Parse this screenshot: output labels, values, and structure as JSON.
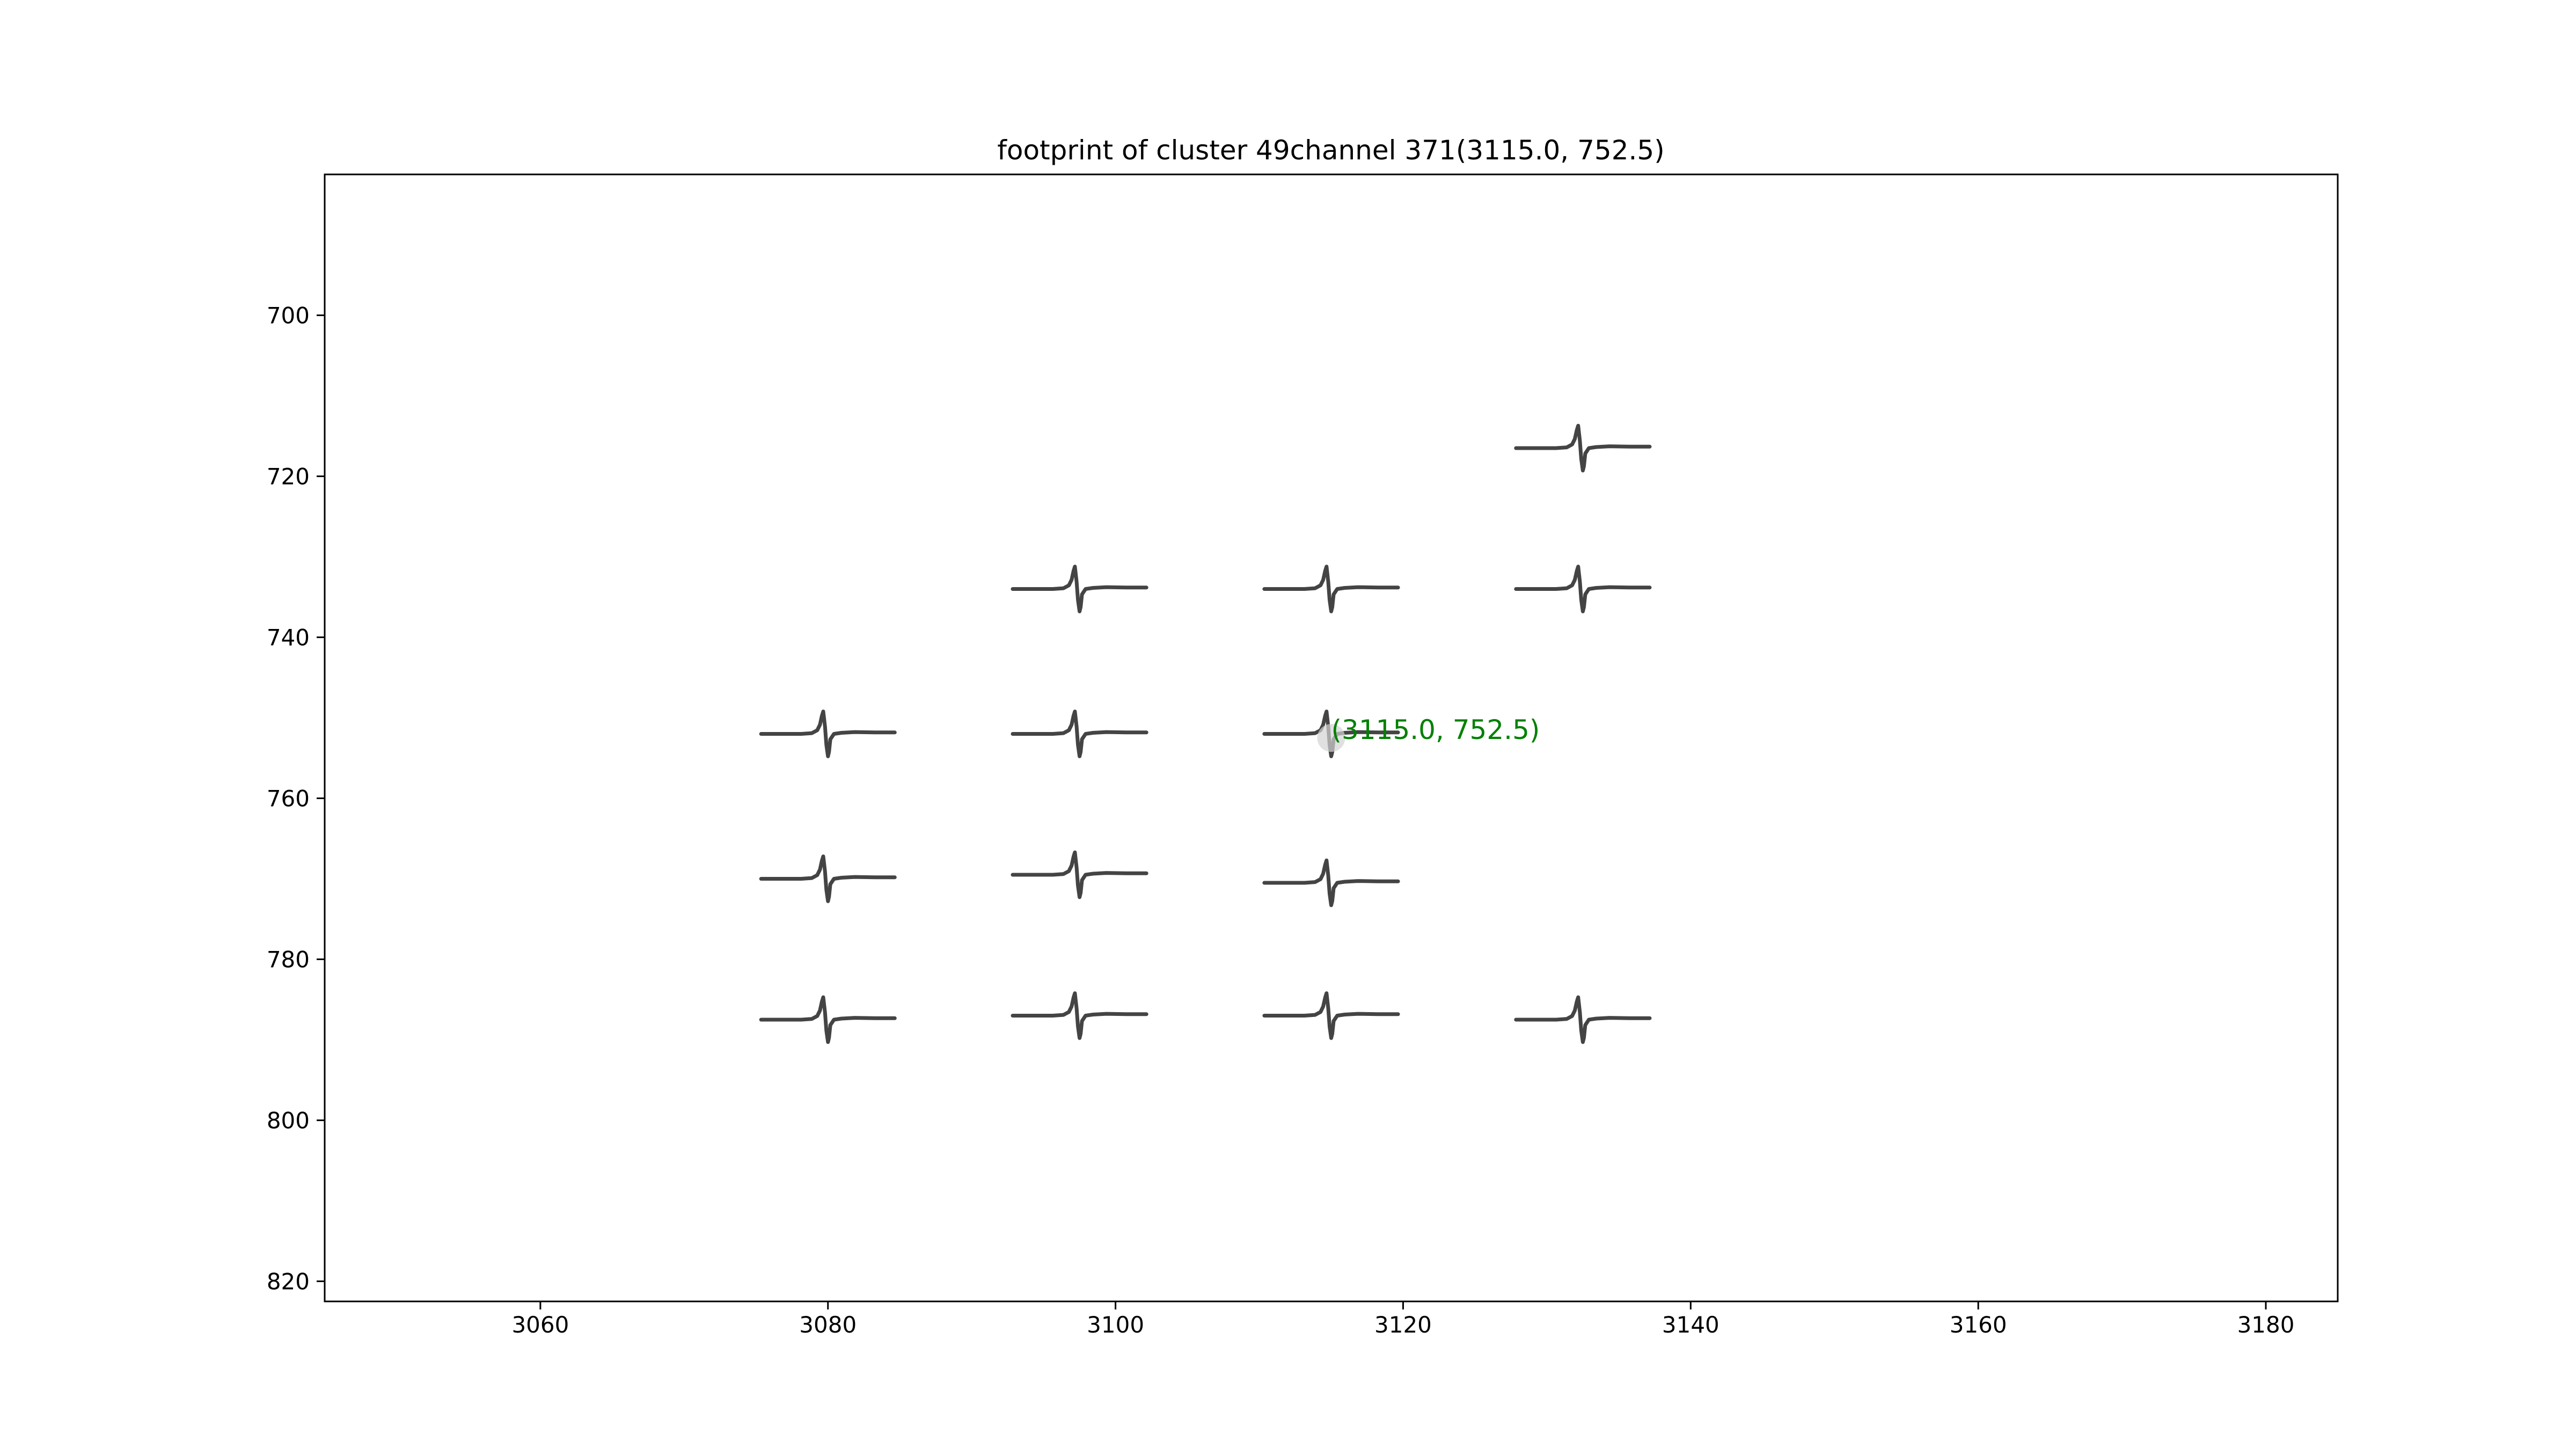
{
  "chart_data": {
    "type": "line",
    "title": "footprint of cluster 49channel 371(3115.0, 752.5)",
    "xlabel": "",
    "ylabel": "",
    "xlim": [
      3045,
      3185
    ],
    "ylim": [
      822.5,
      682.5
    ],
    "y_inverted": true,
    "xticks": [
      3060,
      3080,
      3100,
      3120,
      3140,
      3160,
      3180
    ],
    "yticks": [
      700,
      720,
      740,
      760,
      780,
      800,
      820
    ],
    "grid": false,
    "legend": "none",
    "waveform_span_x": 9.3,
    "waveform_amplitude_y": 4.5,
    "colors": {
      "waveform": "#444444",
      "center_marker": "#d3d3d3",
      "annotation": "#008000",
      "axes": "#000000"
    },
    "channels": [
      {
        "x": 3132.5,
        "y": 716.5
      },
      {
        "x": 3097.5,
        "y": 734.0
      },
      {
        "x": 3115.0,
        "y": 734.0
      },
      {
        "x": 3132.5,
        "y": 734.0
      },
      {
        "x": 3080.0,
        "y": 752.0
      },
      {
        "x": 3097.5,
        "y": 752.0
      },
      {
        "x": 3115.0,
        "y": 752.0
      },
      {
        "x": 3080.0,
        "y": 770.0
      },
      {
        "x": 3097.5,
        "y": 769.5
      },
      {
        "x": 3115.0,
        "y": 770.5
      },
      {
        "x": 3080.0,
        "y": 787.5
      },
      {
        "x": 3097.5,
        "y": 787.0
      },
      {
        "x": 3115.0,
        "y": 787.0
      },
      {
        "x": 3132.5,
        "y": 787.5
      }
    ],
    "center": {
      "x": 3115.0,
      "y": 752.5
    },
    "annotation": {
      "text": "(3115.0, 752.5)",
      "x": 3115.0,
      "y": 752.5
    }
  }
}
